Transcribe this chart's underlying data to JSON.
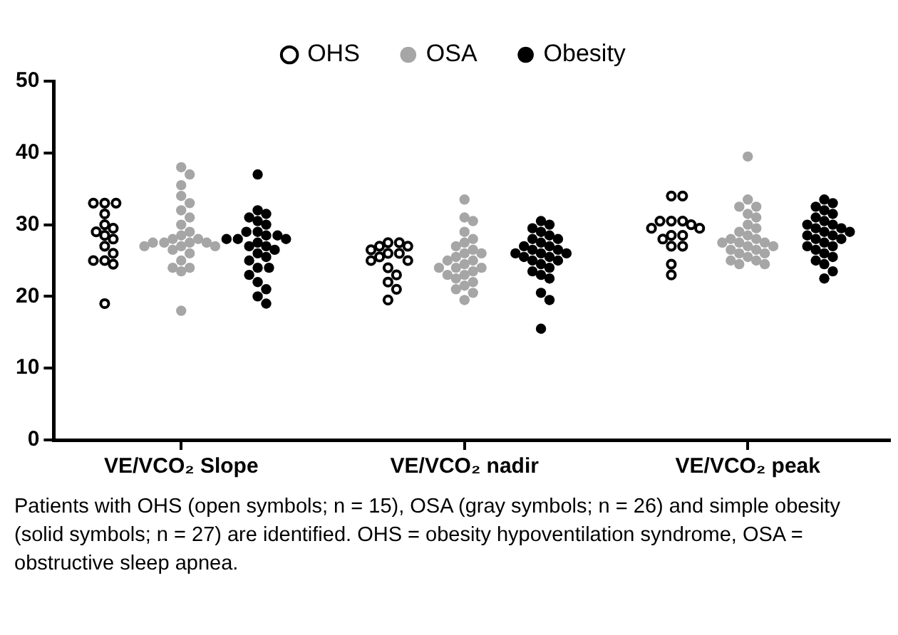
{
  "chart_data": {
    "type": "scatter",
    "categories": [
      "VE/VCO₂ Slope",
      "VE/VCO₂ nadir",
      "VE/VCO₂ peak"
    ],
    "ylim": [
      0,
      50
    ],
    "yticks": [
      0,
      10,
      20,
      30,
      40,
      50
    ],
    "grid": false,
    "legend": "top",
    "marker": "circle",
    "annotations": [
      "Patients with OHS (open symbols; n = 15), OSA (gray symbols; n = 26) and simple obesity (solid symbols; n = 27) are identified. OHS = obesity hypoventilation syndrome, OSA = obstructive sleep apnea."
    ],
    "series": [
      {
        "name": "OHS",
        "color": "#ffffff",
        "x": [
          "VE/VCO₂ Slope",
          "VE/VCO₂ Slope",
          "VE/VCO₂ Slope",
          "VE/VCO₂ Slope",
          "VE/VCO₂ Slope",
          "VE/VCO₂ Slope",
          "VE/VCO₂ Slope",
          "VE/VCO₂ Slope",
          "VE/VCO₂ Slope",
          "VE/VCO₂ Slope",
          "VE/VCO₂ Slope",
          "VE/VCO₂ Slope",
          "VE/VCO₂ Slope",
          "VE/VCO₂ Slope",
          "VE/VCO₂ Slope",
          "VE/VCO₂ nadir",
          "VE/VCO₂ nadir",
          "VE/VCO₂ nadir",
          "VE/VCO₂ nadir",
          "VE/VCO₂ nadir",
          "VE/VCO₂ nadir",
          "VE/VCO₂ nadir",
          "VE/VCO₂ nadir",
          "VE/VCO₂ nadir",
          "VE/VCO₂ nadir",
          "VE/VCO₂ nadir",
          "VE/VCO₂ nadir",
          "VE/VCO₂ nadir",
          "VE/VCO₂ nadir",
          "VE/VCO₂ nadir",
          "VE/VCO₂ peak",
          "VE/VCO₂ peak",
          "VE/VCO₂ peak",
          "VE/VCO₂ peak",
          "VE/VCO₂ peak",
          "VE/VCO₂ peak",
          "VE/VCO₂ peak",
          "VE/VCO₂ peak",
          "VE/VCO₂ peak",
          "VE/VCO₂ peak",
          "VE/VCO₂ peak",
          "VE/VCO₂ peak",
          "VE/VCO₂ peak",
          "VE/VCO₂ peak",
          "VE/VCO₂ peak"
        ],
        "values": [
          33,
          33,
          33,
          31.5,
          30,
          29.5,
          29,
          28.5,
          28,
          27,
          26,
          25,
          25,
          24.5,
          19,
          27.5,
          27.5,
          27,
          27,
          26.5,
          26,
          26,
          25.5,
          25,
          25,
          24,
          23,
          22,
          21,
          19.5,
          34,
          34,
          30.5,
          30.5,
          30.5,
          30,
          29.5,
          29.5,
          28.5,
          28.5,
          28,
          27,
          27,
          24.5,
          23
        ]
      },
      {
        "name": "OSA",
        "color": "#a6a6a6",
        "x": [
          "VE/VCO₂ Slope",
          "VE/VCO₂ Slope",
          "VE/VCO₂ Slope",
          "VE/VCO₂ Slope",
          "VE/VCO₂ Slope",
          "VE/VCO₂ Slope",
          "VE/VCO₂ Slope",
          "VE/VCO₂ Slope",
          "VE/VCO₂ Slope",
          "VE/VCO₂ Slope",
          "VE/VCO₂ Slope",
          "VE/VCO₂ Slope",
          "VE/VCO₂ Slope",
          "VE/VCO₂ Slope",
          "VE/VCO₂ Slope",
          "VE/VCO₂ Slope",
          "VE/VCO₂ Slope",
          "VE/VCO₂ Slope",
          "VE/VCO₂ Slope",
          "VE/VCO₂ Slope",
          "VE/VCO₂ Slope",
          "VE/VCO₂ Slope",
          "VE/VCO₂ Slope",
          "VE/VCO₂ Slope",
          "VE/VCO₂ Slope",
          "VE/VCO₂ Slope",
          "VE/VCO₂ nadir",
          "VE/VCO₂ nadir",
          "VE/VCO₂ nadir",
          "VE/VCO₂ nadir",
          "VE/VCO₂ nadir",
          "VE/VCO₂ nadir",
          "VE/VCO₂ nadir",
          "VE/VCO₂ nadir",
          "VE/VCO₂ nadir",
          "VE/VCO₂ nadir",
          "VE/VCO₂ nadir",
          "VE/VCO₂ nadir",
          "VE/VCO₂ nadir",
          "VE/VCO₂ nadir",
          "VE/VCO₂ nadir",
          "VE/VCO₂ nadir",
          "VE/VCO₂ nadir",
          "VE/VCO₂ nadir",
          "VE/VCO₂ nadir",
          "VE/VCO₂ nadir",
          "VE/VCO₂ nadir",
          "VE/VCO₂ nadir",
          "VE/VCO₂ nadir",
          "VE/VCO₂ nadir",
          "VE/VCO₂ nadir",
          "VE/VCO₂ nadir",
          "VE/VCO₂ peak",
          "VE/VCO₂ peak",
          "VE/VCO₂ peak",
          "VE/VCO₂ peak",
          "VE/VCO₂ peak",
          "VE/VCO₂ peak",
          "VE/VCO₂ peak",
          "VE/VCO₂ peak",
          "VE/VCO₂ peak",
          "VE/VCO₂ peak",
          "VE/VCO₂ peak",
          "VE/VCO₂ peak",
          "VE/VCO₂ peak",
          "VE/VCO₂ peak",
          "VE/VCO₂ peak",
          "VE/VCO₂ peak",
          "VE/VCO₂ peak",
          "VE/VCO₂ peak",
          "VE/VCO₂ peak",
          "VE/VCO₂ peak",
          "VE/VCO₂ peak",
          "VE/VCO₂ peak",
          "VE/VCO₂ peak",
          "VE/VCO₂ peak",
          "VE/VCO₂ peak",
          "VE/VCO₂ peak"
        ],
        "values": [
          38,
          37,
          35.5,
          34,
          33,
          32,
          31,
          30,
          29,
          28.5,
          28,
          28,
          27.5,
          27.5,
          27.5,
          27.5,
          27,
          27,
          27,
          26.5,
          26,
          25,
          24,
          24,
          23.5,
          18,
          33.5,
          31,
          30.5,
          29,
          28,
          27.5,
          27,
          26.5,
          26,
          26,
          25.5,
          25,
          25,
          24.5,
          24,
          24,
          24,
          23.5,
          23,
          23,
          22.5,
          22,
          21.5,
          21,
          20.5,
          19.5,
          39.5,
          33.5,
          32.5,
          32.5,
          31.5,
          31,
          30,
          29.5,
          29,
          28.5,
          28,
          28,
          27.5,
          27.5,
          27.5,
          27,
          27,
          26.5,
          26.5,
          26,
          26,
          25.5,
          25,
          25,
          24.5,
          24.5
        ]
      },
      {
        "name": "Obesity",
        "color": "#000000",
        "x": [
          "VE/VCO₂ Slope",
          "VE/VCO₂ Slope",
          "VE/VCO₂ Slope",
          "VE/VCO₂ Slope",
          "VE/VCO₂ Slope",
          "VE/VCO₂ Slope",
          "VE/VCO₂ Slope",
          "VE/VCO₂ Slope",
          "VE/VCO₂ Slope",
          "VE/VCO₂ Slope",
          "VE/VCO₂ Slope",
          "VE/VCO₂ Slope",
          "VE/VCO₂ Slope",
          "VE/VCO₂ Slope",
          "VE/VCO₂ Slope",
          "VE/VCO₂ Slope",
          "VE/VCO₂ Slope",
          "VE/VCO₂ Slope",
          "VE/VCO₂ Slope",
          "VE/VCO₂ Slope",
          "VE/VCO₂ Slope",
          "VE/VCO₂ Slope",
          "VE/VCO₂ Slope",
          "VE/VCO₂ Slope",
          "VE/VCO₂ Slope",
          "VE/VCO₂ Slope",
          "VE/VCO₂ Slope",
          "VE/VCO₂ nadir",
          "VE/VCO₂ nadir",
          "VE/VCO₂ nadir",
          "VE/VCO₂ nadir",
          "VE/VCO₂ nadir",
          "VE/VCO₂ nadir",
          "VE/VCO₂ nadir",
          "VE/VCO₂ nadir",
          "VE/VCO₂ nadir",
          "VE/VCO₂ nadir",
          "VE/VCO₂ nadir",
          "VE/VCO₂ nadir",
          "VE/VCO₂ nadir",
          "VE/VCO₂ nadir",
          "VE/VCO₂ nadir",
          "VE/VCO₂ nadir",
          "VE/VCO₂ nadir",
          "VE/VCO₂ nadir",
          "VE/VCO₂ nadir",
          "VE/VCO₂ nadir",
          "VE/VCO₂ nadir",
          "VE/VCO₂ nadir",
          "VE/VCO₂ nadir",
          "VE/VCO₂ nadir",
          "VE/VCO₂ nadir",
          "VE/VCO₂ nadir",
          "VE/VCO₂ nadir",
          "VE/VCO₂ peak",
          "VE/VCO₂ peak",
          "VE/VCO₂ peak",
          "VE/VCO₂ peak",
          "VE/VCO₂ peak",
          "VE/VCO₂ peak",
          "VE/VCO₂ peak",
          "VE/VCO₂ peak",
          "VE/VCO₂ peak",
          "VE/VCO₂ peak",
          "VE/VCO₂ peak",
          "VE/VCO₂ peak",
          "VE/VCO₂ peak",
          "VE/VCO₂ peak",
          "VE/VCO₂ peak",
          "VE/VCO₂ peak",
          "VE/VCO₂ peak",
          "VE/VCO₂ peak",
          "VE/VCO₂ peak",
          "VE/VCO₂ peak",
          "VE/VCO₂ peak",
          "VE/VCO₂ peak",
          "VE/VCO₂ peak",
          "VE/VCO₂ peak",
          "VE/VCO₂ peak",
          "VE/VCO₂ peak",
          "VE/VCO₂ peak"
        ],
        "values": [
          37,
          32,
          31.5,
          31,
          30.5,
          30,
          29,
          29,
          28.5,
          28.5,
          28,
          28,
          28,
          27.5,
          27,
          27,
          26.5,
          26,
          25.5,
          25,
          24,
          24,
          23,
          22,
          21,
          20,
          19,
          30.5,
          30,
          29.5,
          29,
          28.5,
          28,
          28,
          27.5,
          27,
          27,
          26.5,
          26.5,
          26,
          26,
          26,
          25.5,
          25.5,
          25,
          25,
          24.5,
          24,
          23.5,
          23,
          22.5,
          20.5,
          19.5,
          15.5,
          33.5,
          33,
          32.5,
          32,
          31.5,
          31,
          30.5,
          30,
          30,
          29.5,
          29.5,
          29,
          29,
          28.5,
          28.5,
          28,
          28,
          27.5,
          27,
          27,
          26.5,
          26,
          25.5,
          25,
          24.5,
          23.5,
          22.5
        ]
      }
    ]
  }
}
